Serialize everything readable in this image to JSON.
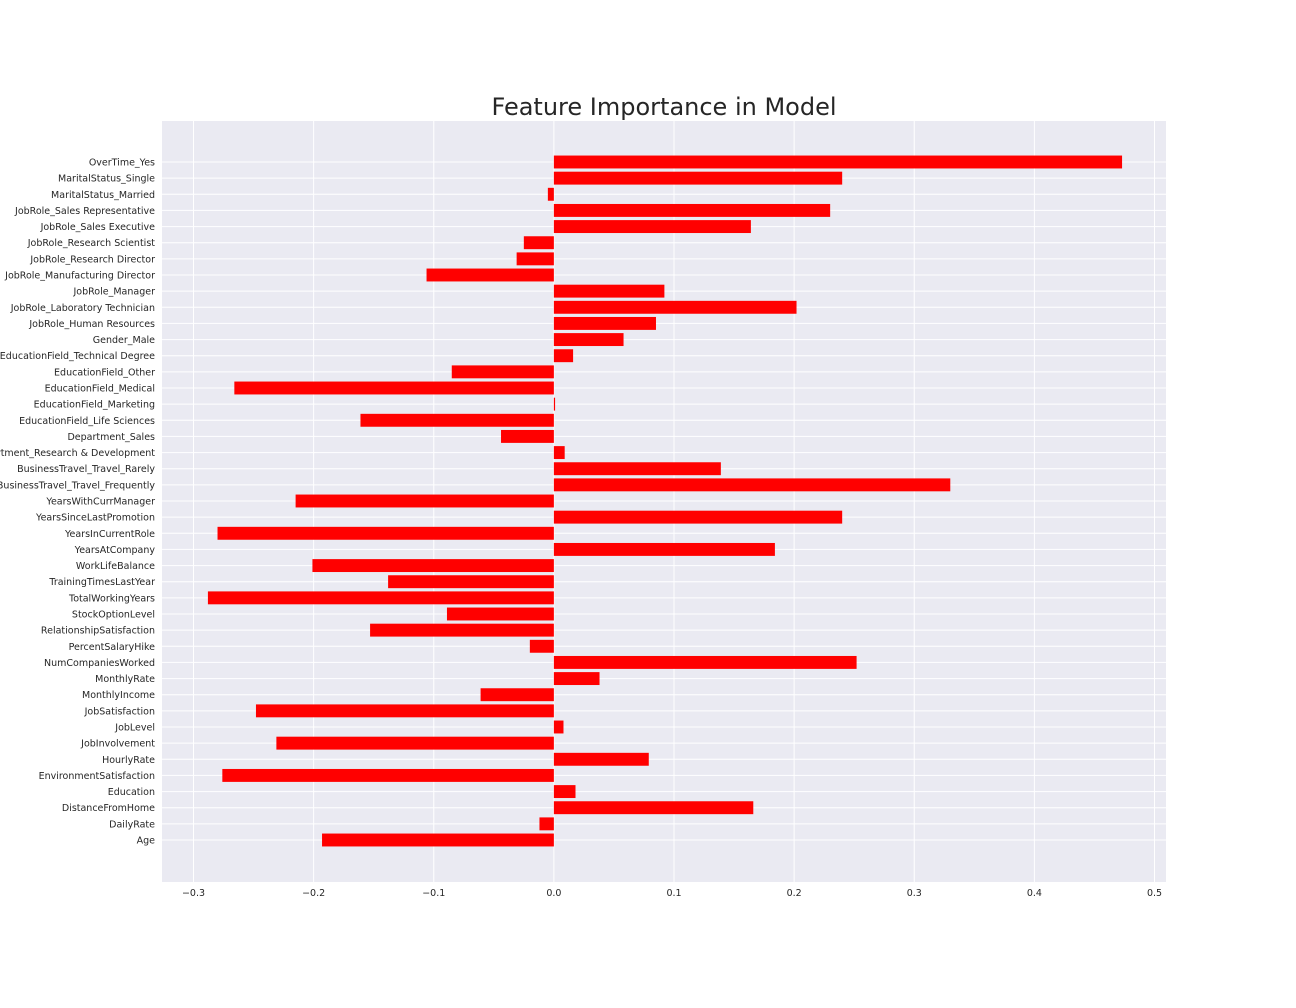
{
  "chart_data": {
    "type": "bar",
    "orientation": "horizontal",
    "title": "Feature Importance in Model",
    "xlabel": "",
    "ylabel": "",
    "xlim": [
      -0.3,
      0.5
    ],
    "x_ticks": [
      "−0.3",
      "−0.2",
      "−0.1",
      "0.0",
      "0.1",
      "0.2",
      "0.3",
      "0.4",
      "0.5"
    ],
    "grid": true,
    "bar_color": "#ff0000",
    "background_color": "#eaeaf2",
    "grid_color": "#ffffff",
    "categories": [
      "Age",
      "DailyRate",
      "DistanceFromHome",
      "Education",
      "EnvironmentSatisfaction",
      "HourlyRate",
      "JobInvolvement",
      "JobLevel",
      "JobSatisfaction",
      "MonthlyIncome",
      "MonthlyRate",
      "NumCompaniesWorked",
      "PercentSalaryHike",
      "RelationshipSatisfaction",
      "StockOptionLevel",
      "TotalWorkingYears",
      "TrainingTimesLastYear",
      "WorkLifeBalance",
      "YearsAtCompany",
      "YearsInCurrentRole",
      "YearsSinceLastPromotion",
      "YearsWithCurrManager",
      "BusinessTravel_Travel_Frequently",
      "BusinessTravel_Travel_Rarely",
      "Department_Research & Development",
      "Department_Sales",
      "EducationField_Life Sciences",
      "EducationField_Marketing",
      "EducationField_Medical",
      "EducationField_Other",
      "EducationField_Technical Degree",
      "Gender_Male",
      "JobRole_Human Resources",
      "JobRole_Laboratory Technician",
      "JobRole_Manager",
      "JobRole_Manufacturing Director",
      "JobRole_Research Director",
      "JobRole_Research Scientist",
      "JobRole_Sales Executive",
      "JobRole_Sales Representative",
      "MaritalStatus_Married",
      "MaritalStatus_Single",
      "OverTime_Yes"
    ],
    "values": [
      -0.193,
      -0.012,
      0.166,
      0.018,
      -0.276,
      0.079,
      -0.231,
      0.008,
      -0.248,
      -0.061,
      0.038,
      0.252,
      -0.02,
      -0.153,
      -0.089,
      -0.288,
      -0.138,
      -0.201,
      0.184,
      -0.28,
      0.24,
      -0.215,
      0.33,
      0.139,
      0.009,
      -0.044,
      -0.161,
      0.001,
      -0.266,
      -0.085,
      0.016,
      0.058,
      0.085,
      0.202,
      0.092,
      -0.106,
      -0.031,
      -0.025,
      0.164,
      0.23,
      -0.005,
      0.24,
      0.473
    ]
  }
}
